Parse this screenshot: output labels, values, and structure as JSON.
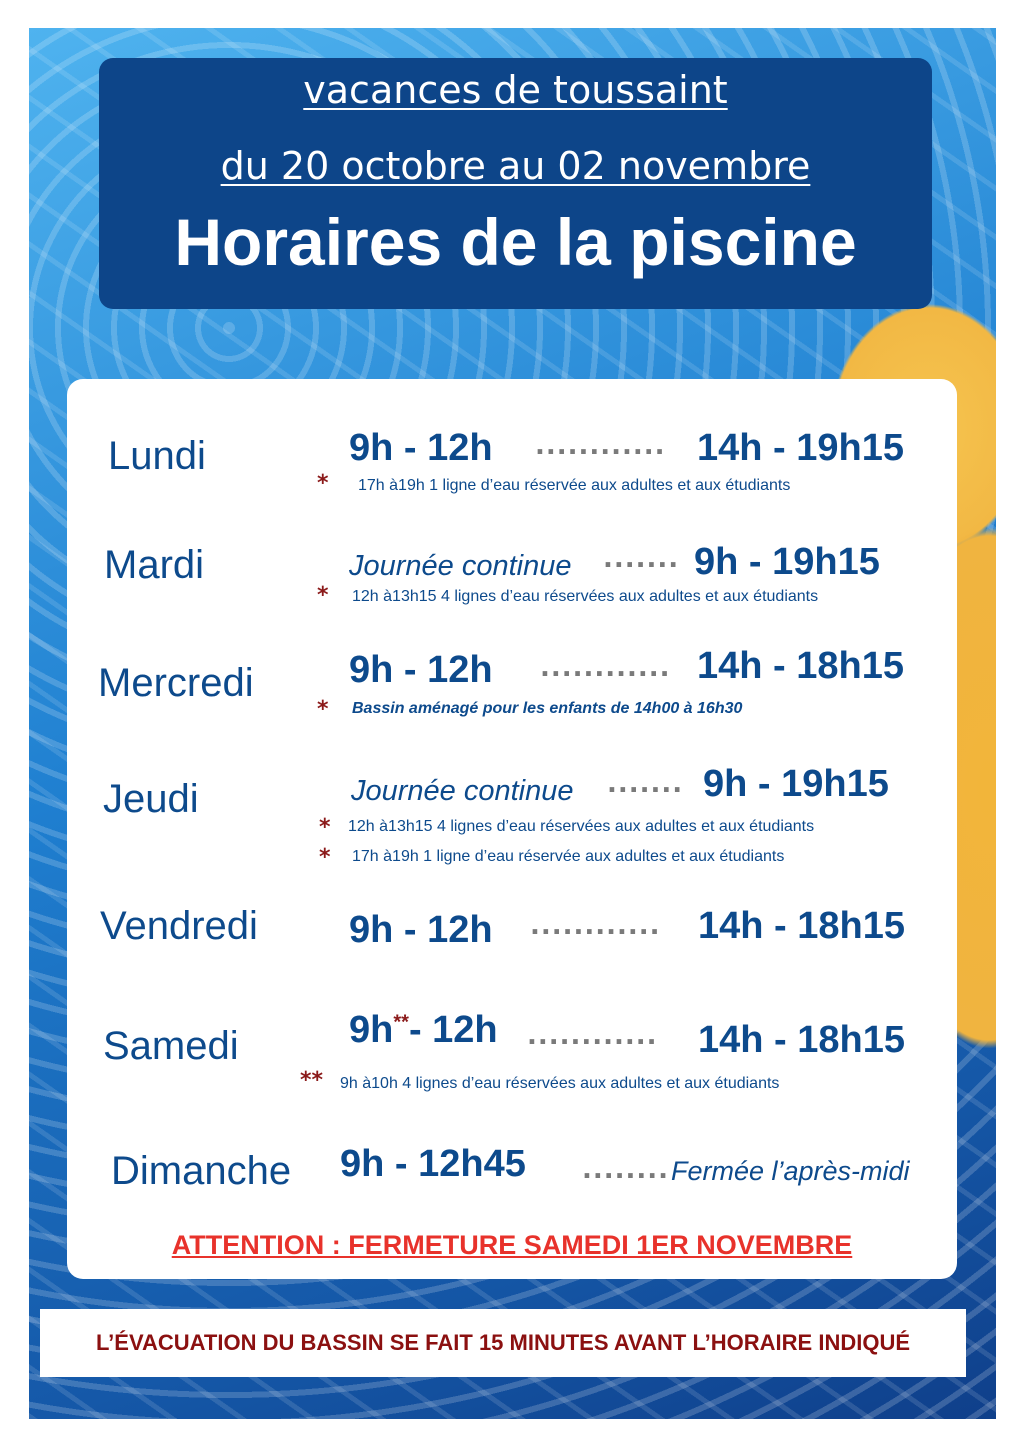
{
  "header": {
    "line1": "vacances de toussaint",
    "line2": "du 20 octobre au 02 novembre",
    "title": "Horaires de la piscine"
  },
  "schedule": [
    {
      "day": "Lundi",
      "morning": "9h - 12h",
      "afternoon": "14h - 19h15",
      "notes": [
        {
          "mark": "*",
          "text": "17h à19h 1 ligne d’eau réservée aux adultes et aux étudiants"
        }
      ]
    },
    {
      "day": "Mardi",
      "morning": "Journée continue",
      "afternoon": "9h - 19h15",
      "notes": [
        {
          "mark": "*",
          "text": "12h à13h15 4 lignes d’eau réservées aux adultes et aux étudiants"
        }
      ]
    },
    {
      "day": "Mercredi",
      "morning": "9h - 12h",
      "afternoon": "14h - 18h15",
      "notes": [
        {
          "mark": "*",
          "text": "Bassin aménagé pour les enfants de 14h00 à 16h30"
        }
      ]
    },
    {
      "day": "Jeudi",
      "morning": "Journée continue",
      "afternoon": "9h - 19h15",
      "notes": [
        {
          "mark": "*",
          "text": "12h à13h15 4 lignes d’eau réservées aux adultes et aux étudiants"
        },
        {
          "mark": "*",
          "text": "17h à19h 1 ligne d’eau réservée aux adultes et aux étudiants"
        }
      ]
    },
    {
      "day": "Vendredi",
      "morning": "9h - 12h",
      "afternoon": "14h - 18h15",
      "notes": []
    },
    {
      "day": "Samedi",
      "morning_a": "9h",
      "morning_mark": "**",
      "morning_b": "- 12h",
      "afternoon": "14h - 18h15",
      "notes": [
        {
          "mark": "**",
          "text": "9h à10h 4 lignes d’eau réservées aux adultes et aux étudiants"
        }
      ]
    },
    {
      "day": "Dimanche",
      "morning": "9h - 12h45",
      "afternoon": "Fermée l’après-midi",
      "notes": []
    }
  ],
  "dots": {
    "long": "............",
    "short": ".......",
    "medium": "........"
  },
  "attention": "ATTENTION :  FERMETURE  SAMEDI 1ER NOVEMBRE",
  "evacuation": "L’ÉVACUATION DU BASSIN SE FAIT 15 MINUTES AVANT L’HORAIRE INDIQUÉ",
  "colors": {
    "navy": "#0d4589",
    "red": "#e8322b",
    "darkred": "#8b1010"
  }
}
